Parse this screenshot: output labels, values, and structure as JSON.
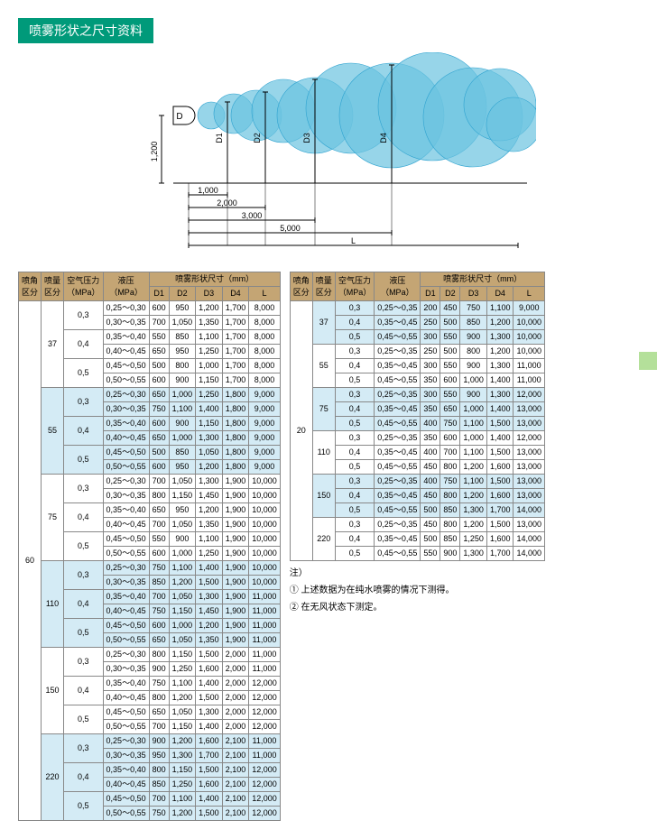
{
  "title": "喷雾形状之尺寸资料",
  "diagram": {
    "height_label": "1,200",
    "xlabels": [
      "1,000",
      "2,000",
      "3,000",
      "5,000",
      "L"
    ],
    "nozzle": "D",
    "dlabels": [
      "D1",
      "D2",
      "D3",
      "D4"
    ],
    "cloud_color": "#6bc3e0",
    "cloud_stroke": "#2fa3d0",
    "line_color": "#000000"
  },
  "headers": {
    "col1": "喷角\n区分",
    "col2": "喷量\n区分",
    "col3": "空气压力\n（MPa）",
    "col4": "液压\n（MPa）",
    "group": "喷雾形状尺寸（mm）",
    "sub": [
      "D1",
      "D2",
      "D3",
      "D4",
      "L"
    ]
  },
  "table1": {
    "angle": "60",
    "groups": [
      {
        "flow": "37",
        "alt": false,
        "subs": [
          {
            "air": "0,3",
            "rows": [
              [
                "0,25～0,30",
                "600",
                "950",
                "1,200",
                "1,700",
                "8,000"
              ],
              [
                "0,30～0,35",
                "700",
                "1,050",
                "1,350",
                "1,700",
                "8,000"
              ]
            ]
          },
          {
            "air": "0,4",
            "rows": [
              [
                "0,35～0,40",
                "550",
                "850",
                "1,100",
                "1,700",
                "8,000"
              ],
              [
                "0,40～0,45",
                "650",
                "950",
                "1,250",
                "1,700",
                "8,000"
              ]
            ]
          },
          {
            "air": "0,5",
            "rows": [
              [
                "0,45～0,50",
                "500",
                "800",
                "1,000",
                "1,700",
                "8,000"
              ],
              [
                "0,50～0,55",
                "600",
                "900",
                "1,150",
                "1,700",
                "8,000"
              ]
            ]
          }
        ]
      },
      {
        "flow": "55",
        "alt": true,
        "subs": [
          {
            "air": "0,3",
            "rows": [
              [
                "0,25～0,30",
                "650",
                "1,000",
                "1,250",
                "1,800",
                "9,000"
              ],
              [
                "0,30～0,35",
                "750",
                "1,100",
                "1,400",
                "1,800",
                "9,000"
              ]
            ]
          },
          {
            "air": "0,4",
            "rows": [
              [
                "0,35～0,40",
                "600",
                "900",
                "1,150",
                "1,800",
                "9,000"
              ],
              [
                "0,40～0,45",
                "650",
                "1,000",
                "1,300",
                "1,800",
                "9,000"
              ]
            ]
          },
          {
            "air": "0,5",
            "rows": [
              [
                "0,45～0,50",
                "500",
                "850",
                "1,050",
                "1,800",
                "9,000"
              ],
              [
                "0,50～0,55",
                "600",
                "950",
                "1,200",
                "1,800",
                "9,000"
              ]
            ]
          }
        ]
      },
      {
        "flow": "75",
        "alt": false,
        "subs": [
          {
            "air": "0,3",
            "rows": [
              [
                "0,25～0,30",
                "700",
                "1,050",
                "1,300",
                "1,900",
                "10,000"
              ],
              [
                "0,30～0,35",
                "800",
                "1,150",
                "1,450",
                "1,900",
                "10,000"
              ]
            ]
          },
          {
            "air": "0,4",
            "rows": [
              [
                "0,35～0,40",
                "650",
                "950",
                "1,200",
                "1,900",
                "10,000"
              ],
              [
                "0,40～0,45",
                "700",
                "1,050",
                "1,350",
                "1,900",
                "10,000"
              ]
            ]
          },
          {
            "air": "0,5",
            "rows": [
              [
                "0,45～0,50",
                "550",
                "900",
                "1,100",
                "1,900",
                "10,000"
              ],
              [
                "0,50～0,55",
                "600",
                "1,000",
                "1,250",
                "1,900",
                "10,000"
              ]
            ]
          }
        ]
      },
      {
        "flow": "110",
        "alt": true,
        "subs": [
          {
            "air": "0,3",
            "rows": [
              [
                "0,25～0,30",
                "750",
                "1,100",
                "1,400",
                "1,900",
                "10,000"
              ],
              [
                "0,30～0,35",
                "850",
                "1,200",
                "1,500",
                "1,900",
                "10,000"
              ]
            ]
          },
          {
            "air": "0,4",
            "rows": [
              [
                "0,35～0,40",
                "700",
                "1,050",
                "1,300",
                "1,900",
                "11,000"
              ],
              [
                "0,40～0,45",
                "750",
                "1,150",
                "1,450",
                "1,900",
                "11,000"
              ]
            ]
          },
          {
            "air": "0,5",
            "rows": [
              [
                "0,45～0,50",
                "600",
                "1,000",
                "1,200",
                "1,900",
                "11,000"
              ],
              [
                "0,50～0,55",
                "650",
                "1,050",
                "1,350",
                "1,900",
                "11,000"
              ]
            ]
          }
        ]
      },
      {
        "flow": "150",
        "alt": false,
        "subs": [
          {
            "air": "0,3",
            "rows": [
              [
                "0,25～0,30",
                "800",
                "1,150",
                "1,500",
                "2,000",
                "11,000"
              ],
              [
                "0,30～0,35",
                "900",
                "1,250",
                "1,600",
                "2,000",
                "11,000"
              ]
            ]
          },
          {
            "air": "0,4",
            "rows": [
              [
                "0,35～0,40",
                "750",
                "1,100",
                "1,400",
                "2,000",
                "12,000"
              ],
              [
                "0,40～0,45",
                "800",
                "1,200",
                "1,500",
                "2,000",
                "12,000"
              ]
            ]
          },
          {
            "air": "0,5",
            "rows": [
              [
                "0,45～0,50",
                "650",
                "1,050",
                "1,300",
                "2,000",
                "12,000"
              ],
              [
                "0,50～0,55",
                "700",
                "1,150",
                "1,400",
                "2,000",
                "12,000"
              ]
            ]
          }
        ]
      },
      {
        "flow": "220",
        "alt": true,
        "subs": [
          {
            "air": "0,3",
            "rows": [
              [
                "0,25～0,30",
                "900",
                "1,200",
                "1,600",
                "2,100",
                "11,000"
              ],
              [
                "0,30～0,35",
                "950",
                "1,300",
                "1,700",
                "2,100",
                "11,000"
              ]
            ]
          },
          {
            "air": "0,4",
            "rows": [
              [
                "0,35～0,40",
                "800",
                "1,150",
                "1,500",
                "2,100",
                "12,000"
              ],
              [
                "0,40～0,45",
                "850",
                "1,250",
                "1,600",
                "2,100",
                "12,000"
              ]
            ]
          },
          {
            "air": "0,5",
            "rows": [
              [
                "0,45～0,50",
                "700",
                "1,100",
                "1,400",
                "2,100",
                "12,000"
              ],
              [
                "0,50～0,55",
                "750",
                "1,200",
                "1,500",
                "2,100",
                "12,000"
              ]
            ]
          }
        ]
      }
    ]
  },
  "table2": {
    "angle": "20",
    "groups": [
      {
        "flow": "37",
        "alt": true,
        "subs": [
          {
            "air": "0,3",
            "rows": [
              [
                "0,25～0,35",
                "200",
                "450",
                "750",
                "1,100",
                "9,000"
              ]
            ]
          },
          {
            "air": "0,4",
            "rows": [
              [
                "0,35～0,45",
                "250",
                "500",
                "850",
                "1,200",
                "10,000"
              ]
            ]
          },
          {
            "air": "0,5",
            "rows": [
              [
                "0,45～0,55",
                "300",
                "550",
                "900",
                "1,300",
                "10,000"
              ]
            ]
          }
        ]
      },
      {
        "flow": "55",
        "alt": false,
        "subs": [
          {
            "air": "0,3",
            "rows": [
              [
                "0,25～0,35",
                "250",
                "500",
                "800",
                "1,200",
                "10,000"
              ]
            ]
          },
          {
            "air": "0,4",
            "rows": [
              [
                "0,35～0,45",
                "300",
                "550",
                "900",
                "1,300",
                "11,000"
              ]
            ]
          },
          {
            "air": "0,5",
            "rows": [
              [
                "0,45～0,55",
                "350",
                "600",
                "1,000",
                "1,400",
                "11,000"
              ]
            ]
          }
        ]
      },
      {
        "flow": "75",
        "alt": true,
        "subs": [
          {
            "air": "0,3",
            "rows": [
              [
                "0,25～0,35",
                "300",
                "550",
                "900",
                "1,300",
                "12,000"
              ]
            ]
          },
          {
            "air": "0,4",
            "rows": [
              [
                "0,35～0,45",
                "350",
                "650",
                "1,000",
                "1,400",
                "13,000"
              ]
            ]
          },
          {
            "air": "0,5",
            "rows": [
              [
                "0,45～0,55",
                "400",
                "750",
                "1,100",
                "1,500",
                "13,000"
              ]
            ]
          }
        ]
      },
      {
        "flow": "110",
        "alt": false,
        "subs": [
          {
            "air": "0,3",
            "rows": [
              [
                "0,25～0,35",
                "350",
                "600",
                "1,000",
                "1,400",
                "12,000"
              ]
            ]
          },
          {
            "air": "0,4",
            "rows": [
              [
                "0,35～0,45",
                "400",
                "700",
                "1,100",
                "1,500",
                "13,000"
              ]
            ]
          },
          {
            "air": "0,5",
            "rows": [
              [
                "0,45～0,55",
                "450",
                "800",
                "1,200",
                "1,600",
                "13,000"
              ]
            ]
          }
        ]
      },
      {
        "flow": "150",
        "alt": true,
        "subs": [
          {
            "air": "0,3",
            "rows": [
              [
                "0,25～0,35",
                "400",
                "750",
                "1,100",
                "1,500",
                "13,000"
              ]
            ]
          },
          {
            "air": "0,4",
            "rows": [
              [
                "0,35～0,45",
                "450",
                "800",
                "1,200",
                "1,600",
                "13,000"
              ]
            ]
          },
          {
            "air": "0,5",
            "rows": [
              [
                "0,45～0,55",
                "500",
                "850",
                "1,300",
                "1,700",
                "14,000"
              ]
            ]
          }
        ]
      },
      {
        "flow": "220",
        "alt": false,
        "subs": [
          {
            "air": "0,3",
            "rows": [
              [
                "0,25～0,35",
                "450",
                "800",
                "1,200",
                "1,500",
                "13,000"
              ]
            ]
          },
          {
            "air": "0,4",
            "rows": [
              [
                "0,35～0,45",
                "500",
                "850",
                "1,250",
                "1,600",
                "14,000"
              ]
            ]
          },
          {
            "air": "0,5",
            "rows": [
              [
                "0,45～0,55",
                "550",
                "900",
                "1,300",
                "1,700",
                "14,000"
              ]
            ]
          }
        ]
      }
    ]
  },
  "notes": {
    "head": "注）",
    "n1": "① 上述数据为在纯水喷雾的情况下测得。",
    "n2": "② 在无风状态下测定。"
  }
}
